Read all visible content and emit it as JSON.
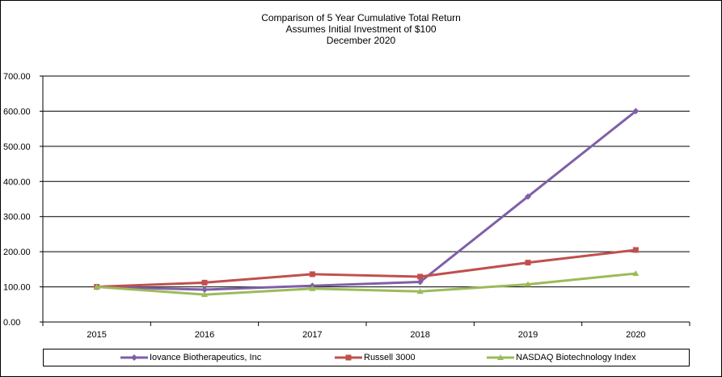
{
  "title_lines": [
    "Comparison  of 5 Year Cumulative  Total Return",
    "Assumes Initial Investment  of $100",
    "December  2020"
  ],
  "chart_data": {
    "type": "line",
    "x": [
      "2015",
      "2016",
      "2017",
      "2018",
      "2019",
      "2020"
    ],
    "ylim": [
      0,
      700
    ],
    "yticks": [
      "0.00",
      "100.00",
      "200.00",
      "300.00",
      "400.00",
      "500.00",
      "600.00",
      "700.00"
    ],
    "grid": true,
    "legend_position": "bottom",
    "series": [
      {
        "name": "Iovance Biotherapeutics, Inc",
        "color": "#7F5FA8",
        "marker": "diamond",
        "values": [
          100,
          92,
          103,
          114,
          357,
          600
        ]
      },
      {
        "name": "Russell 3000",
        "color": "#C0504D",
        "marker": "square",
        "values": [
          100,
          112,
          136,
          129,
          169,
          205
        ]
      },
      {
        "name": "NASDAQ Biotechnology Index",
        "color": "#9BBB59",
        "marker": "triangle",
        "values": [
          100,
          78,
          95,
          87,
          107,
          138
        ]
      }
    ]
  }
}
